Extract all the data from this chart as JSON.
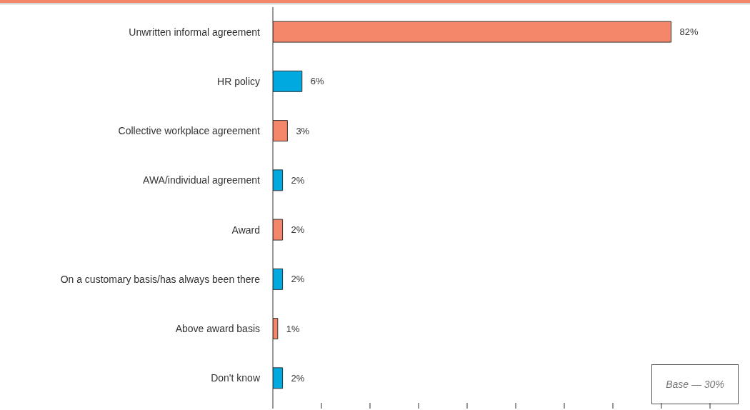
{
  "chart_data": {
    "type": "bar",
    "orientation": "horizontal",
    "categories": [
      "Unwritten informal agreement",
      "HR policy",
      "Collective workplace agreement",
      "AWA/individual agreement",
      "Award",
      "On a customary basis/has always been there",
      "Above award basis",
      "Don't know"
    ],
    "values": [
      82,
      6,
      3,
      2,
      2,
      2,
      1,
      2
    ],
    "value_labels": [
      "82%",
      "6%",
      "3%",
      "2%",
      "2%",
      "2%",
      "1%",
      "2%"
    ],
    "colors": [
      "#f4866a",
      "#00a9e0",
      "#f4866a",
      "#00a9e0",
      "#f4866a",
      "#00a9e0",
      "#f4866a",
      "#00a9e0"
    ],
    "xticks": [
      {
        "value": 0,
        "label": null
      },
      {
        "value": 10,
        "label": null
      },
      {
        "value": 20,
        "label": null
      },
      {
        "value": 30,
        "label": null
      },
      {
        "value": 40,
        "label": null
      },
      {
        "value": 50,
        "label": null
      },
      {
        "value": 60,
        "label": null
      },
      {
        "value": 70,
        "label": null
      },
      {
        "value": 80,
        "label": null
      },
      {
        "value": 90,
        "label": null
      }
    ],
    "grid": false,
    "legend": false,
    "annotations": [
      "Base — 30%"
    ]
  }
}
